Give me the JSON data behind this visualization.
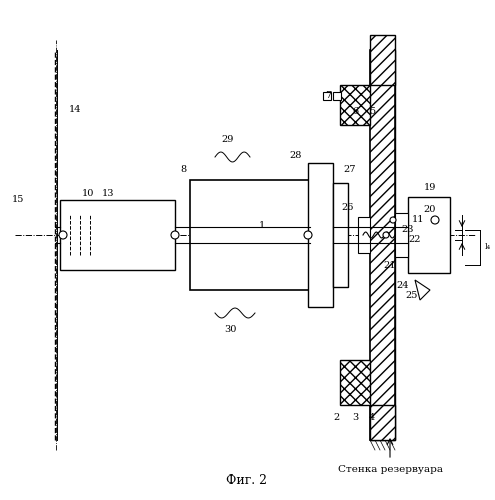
{
  "title": "Фиг. 2",
  "label_stenka": "Стенка резервуара",
  "bg_color": "#ffffff",
  "line_color": "#000000",
  "hatch_color": "#555555",
  "fig_width": 4.95,
  "fig_height": 5.0,
  "dpi": 100
}
